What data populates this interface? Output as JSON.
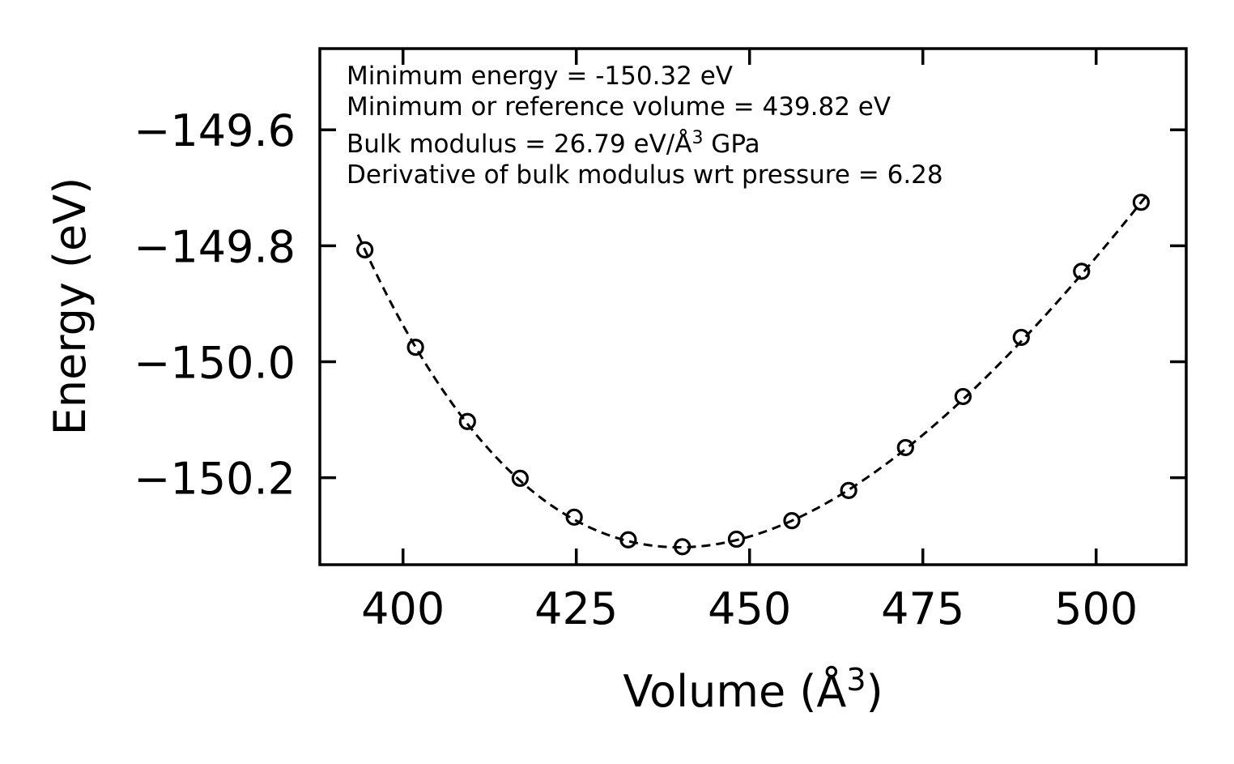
{
  "chart_data": {
    "type": "scatter",
    "title": "",
    "xlabel": "Volume (Å",
    "xlabel_sup": "3",
    "xlabel_end": ")",
    "ylabel": "Energy (eV)",
    "xlim": [
      388,
      513
    ],
    "ylim": [
      -150.35,
      -149.46
    ],
    "xticks": [
      400,
      425,
      450,
      475,
      500
    ],
    "yticks": [
      -149.6,
      -149.8,
      -150.0,
      -150.2
    ],
    "ytick_labels": [
      "−149.6",
      "−149.8",
      "−150.0",
      "−150.2"
    ],
    "xtick_labels": [
      "400",
      "425",
      "450",
      "475",
      "500"
    ],
    "series": [
      {
        "name": "data",
        "marker": "open-circle",
        "x": [
          394.5,
          401.8,
          409.3,
          416.9,
          424.7,
          432.5,
          440.3,
          448.1,
          456.1,
          464.3,
          472.5,
          480.8,
          489.2,
          497.9,
          506.5
        ],
        "y": [
          -149.807,
          -149.975,
          -150.103,
          -150.201,
          -150.268,
          -150.307,
          -150.319,
          -150.306,
          -150.274,
          -150.222,
          -150.148,
          -150.06,
          -149.958,
          -149.844,
          -149.725
        ]
      },
      {
        "name": "fit",
        "style": "dashed",
        "model": "birch-murnaghan",
        "xrange": [
          393.5,
          507.5
        ],
        "E0": -150.32,
        "V0": 439.82,
        "B0": 26.79,
        "B0_prime": 6.28
      }
    ],
    "annotations": [
      "Minimum energy = -150.32 eV",
      "Minimum or reference volume = 439.82 eV",
      "Bulk modulus = 26.79 eV/Å",
      "Derivative of bulk modulus wrt pressure = 6.28"
    ],
    "annotation_bulk_sup": "3",
    "annotation_bulk_end": " GPa"
  }
}
